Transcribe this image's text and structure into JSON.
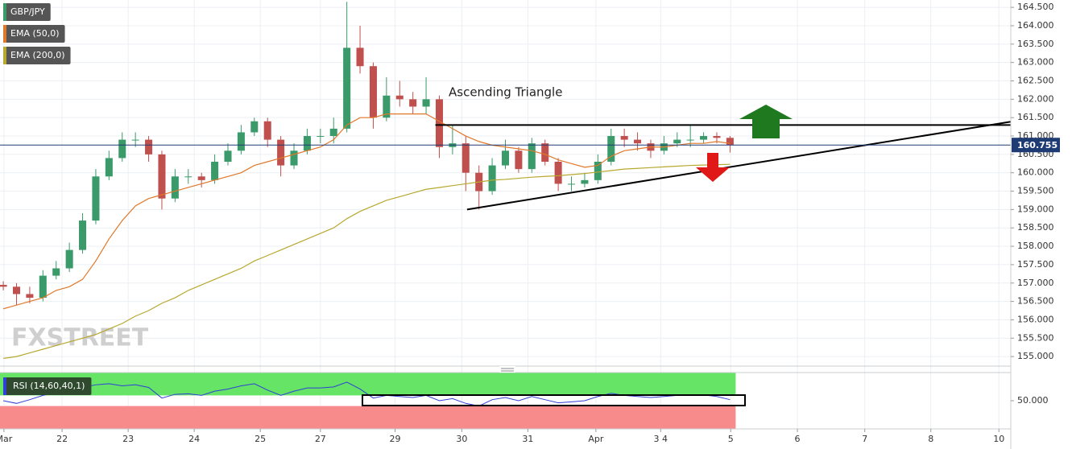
{
  "chart_data": [
    {
      "type": "candlestick",
      "ohlc": {
        "name": "GBP/JPY",
        "up_color": "#3a9a6a",
        "down_color": "#c0504d",
        "x": [
          0.05,
          0.25,
          0.45,
          0.65,
          0.85,
          1.05,
          1.25,
          1.45,
          1.65,
          1.85,
          2.05,
          2.25,
          2.45,
          2.65,
          2.85,
          3.05,
          3.25,
          3.45,
          3.65,
          3.85,
          4.05,
          4.25,
          4.45,
          4.65,
          4.85,
          5.05,
          5.25,
          5.45,
          5.65,
          5.85,
          6.05,
          6.25,
          6.45,
          6.65,
          6.85,
          7.05,
          7.25,
          7.45,
          7.65,
          7.85,
          8.05,
          8.25,
          8.45,
          8.65,
          8.85,
          9.05,
          9.25,
          9.45,
          9.65,
          9.85,
          10.05,
          10.25,
          10.45,
          10.65,
          10.85,
          11.05
        ],
        "open": [
          156.95,
          156.9,
          156.7,
          156.6,
          157.2,
          157.4,
          157.9,
          158.7,
          159.9,
          160.4,
          160.9,
          160.9,
          160.5,
          159.3,
          159.9,
          159.9,
          159.8,
          160.3,
          160.6,
          161.1,
          161.4,
          160.9,
          160.2,
          160.6,
          161.0,
          161.0,
          161.2,
          163.4,
          162.9,
          161.5,
          162.1,
          162.0,
          161.8,
          162.0,
          160.7,
          160.8,
          160.0,
          159.5,
          160.2,
          160.6,
          160.1,
          160.8,
          160.3,
          159.7,
          159.7,
          159.8,
          160.3,
          161.0,
          160.9,
          160.8,
          160.6,
          160.8,
          160.9,
          160.9,
          161.0,
          160.95
        ],
        "high": [
          157.05,
          157.0,
          156.9,
          157.35,
          157.6,
          158.1,
          158.9,
          160.1,
          160.6,
          161.1,
          161.1,
          161.0,
          160.6,
          160.1,
          160.1,
          160.0,
          160.5,
          160.8,
          161.3,
          161.5,
          161.5,
          161.0,
          160.8,
          161.2,
          161.2,
          161.5,
          164.65,
          164.0,
          163.0,
          162.6,
          162.5,
          162.2,
          162.6,
          162.1,
          161.3,
          161.0,
          160.2,
          160.4,
          160.9,
          160.7,
          160.95,
          160.9,
          160.4,
          159.9,
          160.0,
          160.5,
          161.2,
          161.2,
          161.1,
          160.9,
          161.0,
          161.1,
          161.3,
          161.1,
          161.1,
          161.0
        ],
        "low": [
          156.8,
          156.4,
          156.45,
          156.5,
          157.1,
          157.3,
          157.8,
          158.6,
          159.8,
          160.3,
          160.7,
          160.3,
          159.0,
          159.2,
          159.7,
          159.6,
          159.7,
          160.2,
          160.5,
          161.0,
          160.7,
          159.9,
          160.1,
          160.5,
          160.8,
          160.8,
          161.1,
          162.7,
          161.2,
          161.4,
          161.8,
          161.6,
          161.6,
          160.4,
          160.5,
          159.5,
          159.0,
          159.4,
          160.1,
          160.0,
          160.0,
          160.2,
          159.5,
          159.5,
          159.6,
          159.7,
          160.2,
          160.7,
          160.6,
          160.4,
          160.5,
          160.7,
          160.7,
          160.8,
          160.8,
          160.55
        ],
        "close": [
          156.9,
          156.7,
          156.6,
          157.2,
          157.4,
          157.9,
          158.7,
          159.9,
          160.4,
          160.9,
          160.9,
          160.5,
          159.3,
          159.9,
          159.9,
          159.8,
          160.3,
          160.6,
          161.1,
          161.4,
          160.9,
          160.2,
          160.6,
          161.0,
          161.0,
          161.2,
          163.4,
          162.9,
          161.5,
          162.1,
          162.0,
          161.8,
          162.0,
          160.7,
          160.8,
          160.0,
          159.5,
          160.2,
          160.6,
          160.1,
          160.8,
          160.3,
          159.7,
          159.7,
          159.8,
          160.3,
          161.0,
          160.9,
          160.8,
          160.6,
          160.8,
          160.9,
          160.9,
          161.0,
          160.95,
          160.75
        ]
      },
      "series": [
        {
          "name": "EMA (50,0)",
          "color": "#e0782a",
          "values": [
            156.3,
            156.4,
            156.5,
            156.6,
            156.8,
            156.9,
            157.1,
            157.6,
            158.2,
            158.7,
            159.1,
            159.3,
            159.4,
            159.5,
            159.6,
            159.7,
            159.8,
            159.9,
            160.0,
            160.2,
            160.3,
            160.4,
            160.5,
            160.6,
            160.7,
            160.9,
            161.3,
            161.5,
            161.5,
            161.6,
            161.6,
            161.6,
            161.6,
            161.4,
            161.2,
            161.0,
            160.85,
            160.75,
            160.7,
            160.65,
            160.6,
            160.5,
            160.35,
            160.25,
            160.15,
            160.2,
            160.45,
            160.6,
            160.65,
            160.7,
            160.7,
            160.75,
            160.8,
            160.8,
            160.85,
            160.8
          ]
        },
        {
          "name": "EMA (200,0)",
          "color": "#b8a830",
          "values": [
            154.95,
            155.0,
            155.1,
            155.2,
            155.3,
            155.4,
            155.5,
            155.6,
            155.75,
            155.9,
            156.1,
            156.25,
            156.45,
            156.6,
            156.8,
            156.95,
            157.1,
            157.25,
            157.4,
            157.6,
            157.75,
            157.9,
            158.05,
            158.2,
            158.35,
            158.5,
            158.75,
            158.95,
            159.1,
            159.25,
            159.35,
            159.45,
            159.55,
            159.6,
            159.65,
            159.7,
            159.75,
            159.8,
            159.82,
            159.85,
            159.88,
            159.9,
            159.92,
            159.95,
            159.98,
            160.02,
            160.06,
            160.1,
            160.12,
            160.14,
            160.16,
            160.18,
            160.2,
            160.21,
            160.22,
            160.23
          ]
        }
      ],
      "last_price": 160.755,
      "annotation": "Ascending Triangle",
      "watermark": "FXSTREET",
      "lines": [
        {
          "x": [
            6.59,
            15.3
          ],
          "y": [
            161.3,
            161.3
          ]
        },
        {
          "x": [
            7.07,
            15.3
          ],
          "y": [
            159.0,
            161.39
          ]
        }
      ],
      "xlim": [
        0,
        15.3
      ],
      "xticks": [
        {
          "value": 0.06,
          "label": "Mar"
        },
        {
          "value": 0.94,
          "label": "22"
        },
        {
          "value": 1.94,
          "label": "23"
        },
        {
          "value": 2.94,
          "label": "24"
        },
        {
          "value": 3.94,
          "label": "25"
        },
        {
          "value": 4.85,
          "label": "27"
        },
        {
          "value": 5.98,
          "label": "29"
        },
        {
          "value": 6.99,
          "label": "30"
        },
        {
          "value": 7.99,
          "label": "31"
        },
        {
          "value": 9.02,
          "label": "Apr"
        },
        {
          "value": 10.0,
          "label": "3 4"
        },
        {
          "value": 11.06,
          "label": "5"
        },
        {
          "value": 12.07,
          "label": "6"
        },
        {
          "value": 13.09,
          "label": "7"
        },
        {
          "value": 14.09,
          "label": "8"
        },
        {
          "value": 15.12,
          "label": "10"
        }
      ],
      "ylim": [
        154.74,
        164.7
      ],
      "yticks": [
        {
          "value": 155,
          "label": "155.000"
        },
        {
          "value": 155.5,
          "label": "155.500"
        },
        {
          "value": 156,
          "label": "156.000"
        },
        {
          "value": 156.5,
          "label": "156.500"
        },
        {
          "value": 157,
          "label": "157.000"
        },
        {
          "value": 157.5,
          "label": "157.500"
        },
        {
          "value": 158,
          "label": "158.000"
        },
        {
          "value": 158.5,
          "label": "158.500"
        },
        {
          "value": 159,
          "label": "159.000"
        },
        {
          "value": 159.5,
          "label": "159.500"
        },
        {
          "value": 160,
          "label": "160.000"
        },
        {
          "value": 160.5,
          "label": "160.500"
        },
        {
          "value": 161,
          "label": "161.000"
        },
        {
          "value": 161.5,
          "label": "161.500"
        },
        {
          "value": 162,
          "label": "162.000"
        },
        {
          "value": 162.5,
          "label": "162.500"
        },
        {
          "value": 163,
          "label": "163.000"
        },
        {
          "value": 163.5,
          "label": "163.500"
        },
        {
          "value": 164,
          "label": "164.000"
        },
        {
          "value": 164.5,
          "label": "164.500"
        }
      ],
      "grid": true
    },
    {
      "type": "line",
      "series": [
        {
          "name": "RSI (14,60,40,1)",
          "color": "#2f3fd8",
          "values": [
            50,
            45,
            52,
            60,
            65,
            70,
            75,
            80,
            82,
            78,
            80,
            75,
            55,
            62,
            63,
            60,
            68,
            72,
            78,
            82,
            70,
            60,
            68,
            74,
            74,
            76,
            85,
            72,
            55,
            60,
            58,
            56,
            60,
            50,
            54,
            45,
            40,
            52,
            56,
            50,
            58,
            52,
            46,
            48,
            50,
            58,
            64,
            60,
            58,
            56,
            58,
            60,
            60,
            61,
            58,
            52
          ]
        }
      ],
      "levels": [
        60,
        40
      ],
      "level_colors": [
        "#66e466",
        "#f78a8a"
      ],
      "ylim": [
        -3,
        103
      ],
      "yticks": [
        {
          "value": 50,
          "label": "50.000"
        }
      ]
    }
  ]
}
